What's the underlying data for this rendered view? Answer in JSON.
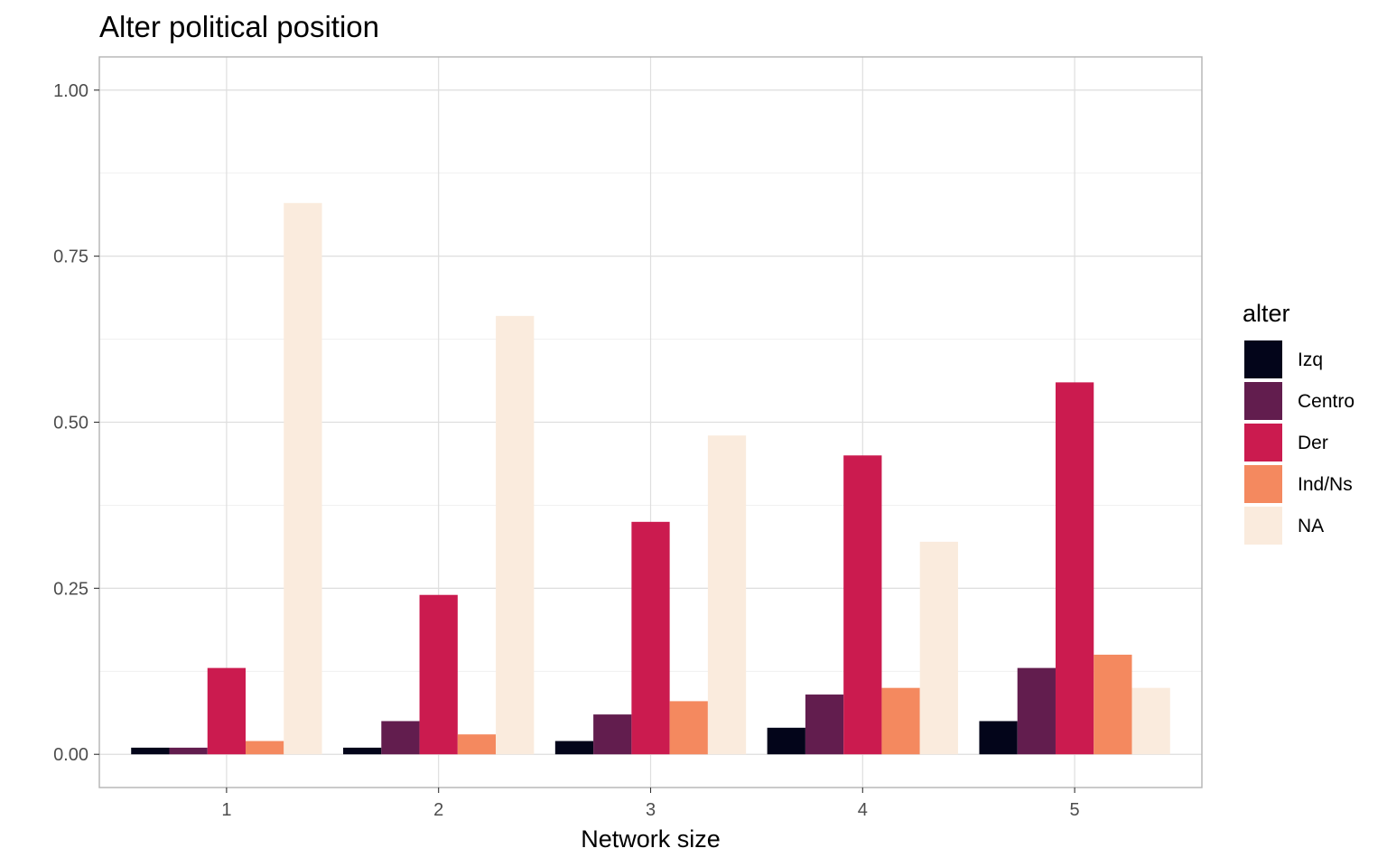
{
  "chart_data": {
    "type": "bar",
    "title": "Alter political position",
    "xlabel": "Network size",
    "ylabel": "",
    "categories": [
      "1",
      "2",
      "3",
      "4",
      "5"
    ],
    "ylim": [
      -0.05,
      1.05
    ],
    "yticks": [
      0.0,
      0.25,
      0.5,
      0.75,
      1.0
    ],
    "ytick_labels": [
      "0.00",
      "0.25",
      "0.50",
      "0.75",
      "1.00"
    ],
    "grid": true,
    "legend": {
      "title": "alter",
      "position": "right"
    },
    "series": [
      {
        "name": "Izq",
        "color": "#03051A",
        "values": [
          0.01,
          0.01,
          0.02,
          0.04,
          0.05
        ]
      },
      {
        "name": "Centro",
        "color": "#621D4E",
        "values": [
          0.01,
          0.05,
          0.06,
          0.09,
          0.13
        ]
      },
      {
        "name": "Der",
        "color": "#CB1B4F",
        "values": [
          0.13,
          0.24,
          0.35,
          0.45,
          0.56
        ]
      },
      {
        "name": "Ind/Ns",
        "color": "#F4895F",
        "values": [
          0.02,
          0.03,
          0.08,
          0.1,
          0.15
        ]
      },
      {
        "name": "NA",
        "color": "#FAEBDD",
        "values": [
          0.83,
          0.66,
          0.48,
          0.32,
          0.1
        ]
      }
    ]
  }
}
